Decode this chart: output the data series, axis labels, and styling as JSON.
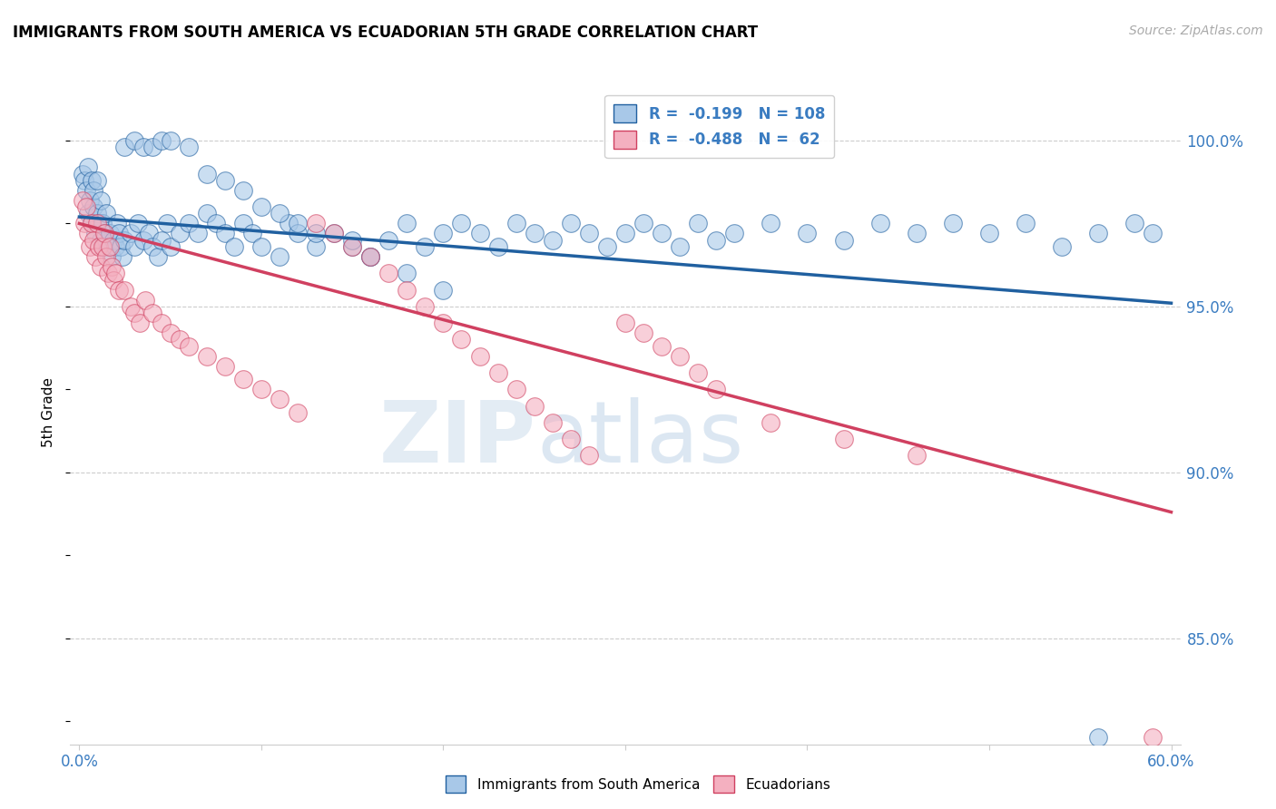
{
  "title": "IMMIGRANTS FROM SOUTH AMERICA VS ECUADORIAN 5TH GRADE CORRELATION CHART",
  "source": "Source: ZipAtlas.com",
  "ylabel": "5th Grade",
  "ytick_labels": [
    "100.0%",
    "95.0%",
    "90.0%",
    "85.0%"
  ],
  "ytick_values": [
    1.0,
    0.95,
    0.9,
    0.85
  ],
  "xlim": [
    -0.005,
    0.605
  ],
  "ylim": [
    0.818,
    1.018
  ],
  "blue_color": "#a8c8e8",
  "pink_color": "#f4b0c0",
  "blue_line_color": "#2060a0",
  "pink_line_color": "#d04060",
  "watermark_zip": "ZIP",
  "watermark_atlas": "atlas",
  "blue_line_x0": 0.0,
  "blue_line_y0": 0.977,
  "blue_line_x1": 0.6,
  "blue_line_y1": 0.951,
  "pink_line_x0": 0.0,
  "pink_line_y0": 0.975,
  "pink_line_x1": 0.6,
  "pink_line_y1": 0.888,
  "blue_scatter_x": [
    0.002,
    0.003,
    0.004,
    0.005,
    0.005,
    0.006,
    0.007,
    0.007,
    0.008,
    0.008,
    0.009,
    0.01,
    0.01,
    0.011,
    0.012,
    0.012,
    0.013,
    0.013,
    0.014,
    0.015,
    0.016,
    0.017,
    0.018,
    0.019,
    0.02,
    0.021,
    0.022,
    0.023,
    0.024,
    0.025,
    0.028,
    0.03,
    0.032,
    0.035,
    0.038,
    0.04,
    0.043,
    0.045,
    0.048,
    0.05,
    0.055,
    0.06,
    0.065,
    0.07,
    0.075,
    0.08,
    0.085,
    0.09,
    0.095,
    0.1,
    0.11,
    0.115,
    0.12,
    0.13,
    0.14,
    0.15,
    0.16,
    0.17,
    0.18,
    0.19,
    0.2,
    0.21,
    0.22,
    0.23,
    0.24,
    0.25,
    0.26,
    0.27,
    0.28,
    0.29,
    0.3,
    0.31,
    0.32,
    0.33,
    0.34,
    0.35,
    0.36,
    0.38,
    0.4,
    0.42,
    0.44,
    0.46,
    0.48,
    0.5,
    0.52,
    0.54,
    0.56,
    0.58,
    0.59,
    0.025,
    0.03,
    0.035,
    0.04,
    0.045,
    0.05,
    0.06,
    0.07,
    0.08,
    0.09,
    0.1,
    0.11,
    0.12,
    0.13,
    0.15,
    0.16,
    0.18,
    0.2,
    0.56
  ],
  "blue_scatter_y": [
    0.99,
    0.988,
    0.985,
    0.992,
    0.978,
    0.982,
    0.988,
    0.975,
    0.98,
    0.985,
    0.972,
    0.978,
    0.988,
    0.975,
    0.97,
    0.982,
    0.968,
    0.975,
    0.972,
    0.978,
    0.968,
    0.972,
    0.965,
    0.97,
    0.968,
    0.975,
    0.972,
    0.968,
    0.965,
    0.97,
    0.972,
    0.968,
    0.975,
    0.97,
    0.972,
    0.968,
    0.965,
    0.97,
    0.975,
    0.968,
    0.972,
    0.975,
    0.972,
    0.978,
    0.975,
    0.972,
    0.968,
    0.975,
    0.972,
    0.968,
    0.965,
    0.975,
    0.972,
    0.968,
    0.972,
    0.968,
    0.965,
    0.97,
    0.975,
    0.968,
    0.972,
    0.975,
    0.972,
    0.968,
    0.975,
    0.972,
    0.97,
    0.975,
    0.972,
    0.968,
    0.972,
    0.975,
    0.972,
    0.968,
    0.975,
    0.97,
    0.972,
    0.975,
    0.972,
    0.97,
    0.975,
    0.972,
    0.975,
    0.972,
    0.975,
    0.968,
    0.972,
    0.975,
    0.972,
    0.998,
    1.0,
    0.998,
    0.998,
    1.0,
    1.0,
    0.998,
    0.99,
    0.988,
    0.985,
    0.98,
    0.978,
    0.975,
    0.972,
    0.97,
    0.965,
    0.96,
    0.955,
    0.82
  ],
  "pink_scatter_x": [
    0.002,
    0.003,
    0.004,
    0.005,
    0.006,
    0.007,
    0.008,
    0.009,
    0.01,
    0.011,
    0.012,
    0.013,
    0.014,
    0.015,
    0.016,
    0.017,
    0.018,
    0.019,
    0.02,
    0.022,
    0.025,
    0.028,
    0.03,
    0.033,
    0.036,
    0.04,
    0.045,
    0.05,
    0.055,
    0.06,
    0.07,
    0.08,
    0.09,
    0.1,
    0.11,
    0.12,
    0.13,
    0.14,
    0.15,
    0.16,
    0.17,
    0.18,
    0.19,
    0.2,
    0.21,
    0.22,
    0.23,
    0.24,
    0.25,
    0.26,
    0.27,
    0.28,
    0.3,
    0.31,
    0.32,
    0.33,
    0.34,
    0.35,
    0.38,
    0.42,
    0.46,
    0.59
  ],
  "pink_scatter_y": [
    0.982,
    0.975,
    0.98,
    0.972,
    0.968,
    0.975,
    0.97,
    0.965,
    0.975,
    0.968,
    0.962,
    0.968,
    0.972,
    0.965,
    0.96,
    0.968,
    0.962,
    0.958,
    0.96,
    0.955,
    0.955,
    0.95,
    0.948,
    0.945,
    0.952,
    0.948,
    0.945,
    0.942,
    0.94,
    0.938,
    0.935,
    0.932,
    0.928,
    0.925,
    0.922,
    0.918,
    0.975,
    0.972,
    0.968,
    0.965,
    0.96,
    0.955,
    0.95,
    0.945,
    0.94,
    0.935,
    0.93,
    0.925,
    0.92,
    0.915,
    0.91,
    0.905,
    0.945,
    0.942,
    0.938,
    0.935,
    0.93,
    0.925,
    0.915,
    0.91,
    0.905,
    0.82
  ]
}
